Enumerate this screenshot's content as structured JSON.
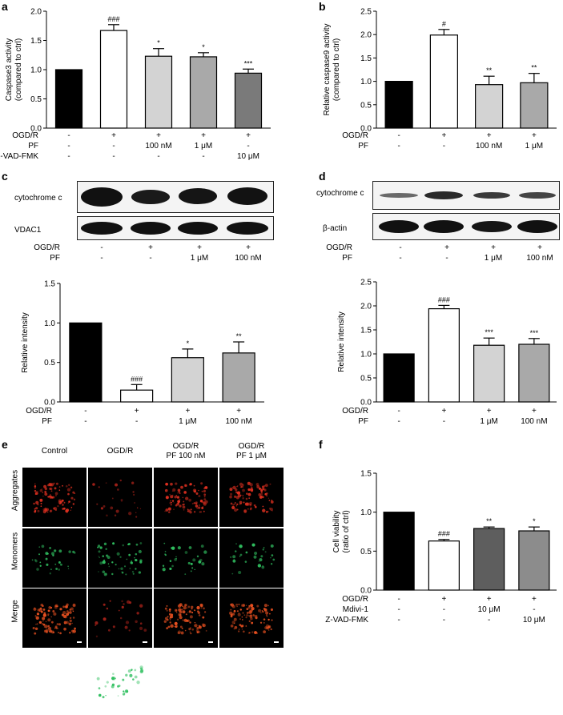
{
  "panel_labels": [
    "a",
    "b",
    "c",
    "d",
    "e",
    "f"
  ],
  "chart_data": [
    {
      "id": "a",
      "type": "bar",
      "ylabel_line1": "Caspase3 activity",
      "ylabel_line2": "(compared to ctrl)",
      "ylim": [
        0,
        2.0
      ],
      "yticks": [
        "0.0",
        "0.5",
        "1.0",
        "1.5",
        "2.0"
      ],
      "values": [
        1.0,
        1.67,
        1.23,
        1.22,
        0.94
      ],
      "errors": [
        0,
        0.1,
        0.13,
        0.07,
        0.07
      ],
      "sig": [
        "",
        "###",
        "*",
        "*",
        "***"
      ],
      "fills": [
        "#000000",
        "#ffffff",
        "#d3d3d3",
        "#a9a9a9",
        "#7a7a7a"
      ],
      "conditions": [
        {
          "name": "OGD/R",
          "vals": [
            "-",
            "+",
            "+",
            "+",
            "+"
          ]
        },
        {
          "name": "PF",
          "vals": [
            "-",
            "-",
            "100 nM",
            "1 μM",
            "-"
          ]
        },
        {
          "name": "Z-VAD-FMK",
          "vals": [
            "-",
            "-",
            "-",
            "-",
            "10 μM"
          ]
        }
      ]
    },
    {
      "id": "b",
      "type": "bar",
      "ylabel_line1": "Relative caspase9 activity",
      "ylabel_line2": "(compared to ctrl)",
      "ylim": [
        0,
        2.5
      ],
      "yticks": [
        "0.0",
        "0.5",
        "1.0",
        "1.5",
        "2.0",
        "2.5"
      ],
      "values": [
        1.0,
        1.99,
        0.93,
        0.97
      ],
      "errors": [
        0,
        0.12,
        0.18,
        0.2
      ],
      "sig": [
        "",
        "#",
        "**",
        "**"
      ],
      "fills": [
        "#000000",
        "#ffffff",
        "#d3d3d3",
        "#a9a9a9"
      ],
      "conditions": [
        {
          "name": "OGD/R",
          "vals": [
            "-",
            "+",
            "+",
            "+"
          ]
        },
        {
          "name": "PF",
          "vals": [
            "-",
            "-",
            "100 nM",
            "1 μM"
          ]
        }
      ]
    },
    {
      "id": "c",
      "type": "bar",
      "ylabel_line1": "Relative intensity",
      "ylabel_line2": "",
      "ylim": [
        0,
        1.5
      ],
      "yticks": [
        "0.0",
        "0.5",
        "1.0",
        "1.5"
      ],
      "values": [
        1.0,
        0.15,
        0.56,
        0.62
      ],
      "errors": [
        0,
        0.07,
        0.11,
        0.14
      ],
      "sig": [
        "",
        "###",
        "*",
        "**"
      ],
      "fills": [
        "#000000",
        "#ffffff",
        "#d3d3d3",
        "#a9a9a9"
      ],
      "conditions": [
        {
          "name": "OGD/R",
          "vals": [
            "-",
            "+",
            "+",
            "+"
          ]
        },
        {
          "name": "PF",
          "vals": [
            "-",
            "-",
            "1 μM",
            "100 nM"
          ]
        }
      ]
    },
    {
      "id": "d",
      "type": "bar",
      "ylabel_line1": "Relative intensity",
      "ylabel_line2": "",
      "ylim": [
        0,
        2.5
      ],
      "yticks": [
        "0.0",
        "0.5",
        "1.0",
        "1.5",
        "2.0",
        "2.5"
      ],
      "values": [
        1.0,
        1.94,
        1.18,
        1.2
      ],
      "errors": [
        0,
        0.07,
        0.15,
        0.12
      ],
      "sig": [
        "",
        "###",
        "***",
        "***"
      ],
      "fills": [
        "#000000",
        "#ffffff",
        "#d3d3d3",
        "#a9a9a9"
      ],
      "conditions": [
        {
          "name": "OGD/R",
          "vals": [
            "-",
            "+",
            "+",
            "+"
          ]
        },
        {
          "name": "PF",
          "vals": [
            "-",
            "-",
            "1 μM",
            "100 nM"
          ]
        }
      ]
    },
    {
      "id": "f",
      "type": "bar",
      "ylabel_line1": "Cell viability",
      "ylabel_line2": "(ratio of ctrl)",
      "ylim": [
        0,
        1.5
      ],
      "yticks": [
        "0.0",
        "0.5",
        "1.0",
        "1.5"
      ],
      "values": [
        1.0,
        0.63,
        0.79,
        0.76
      ],
      "errors": [
        0,
        0.02,
        0.02,
        0.05
      ],
      "sig": [
        "",
        "###",
        "**",
        "*"
      ],
      "fills": [
        "#000000",
        "#ffffff",
        "#5e5e5e",
        "#8c8c8c"
      ],
      "conditions": [
        {
          "name": "OGD/R",
          "vals": [
            "-",
            "+",
            "+",
            "+"
          ]
        },
        {
          "name": "Mdivi-1",
          "vals": [
            "-",
            "-",
            "10 μM",
            "-"
          ]
        },
        {
          "name": "Z-VAD-FMK",
          "vals": [
            "-",
            "-",
            "-",
            "10 μM"
          ]
        }
      ]
    }
  ],
  "blot_c": {
    "bands": [
      "cytochrome c",
      "VDAC1"
    ],
    "conditions": [
      {
        "name": "OGD/R",
        "vals": [
          "-",
          "+",
          "+",
          "+"
        ]
      },
      {
        "name": "PF",
        "vals": [
          "-",
          "-",
          "1 μM",
          "100 nM"
        ]
      }
    ]
  },
  "blot_d": {
    "bands": [
      "cytochrome c",
      "β-actin"
    ],
    "conditions": [
      {
        "name": "OGD/R",
        "vals": [
          "-",
          "+",
          "+",
          "+"
        ]
      },
      {
        "name": "PF",
        "vals": [
          "-",
          "-",
          "1 μM",
          "100 nM"
        ]
      }
    ]
  },
  "micro_e": {
    "columns": [
      [
        "Control"
      ],
      [
        "OGD/R"
      ],
      [
        "OGD/R",
        "PF 100 nM"
      ],
      [
        "OGD/R",
        "PF 1 μM"
      ]
    ],
    "rows": [
      "Aggregates",
      "Monomers",
      "Merge"
    ]
  }
}
